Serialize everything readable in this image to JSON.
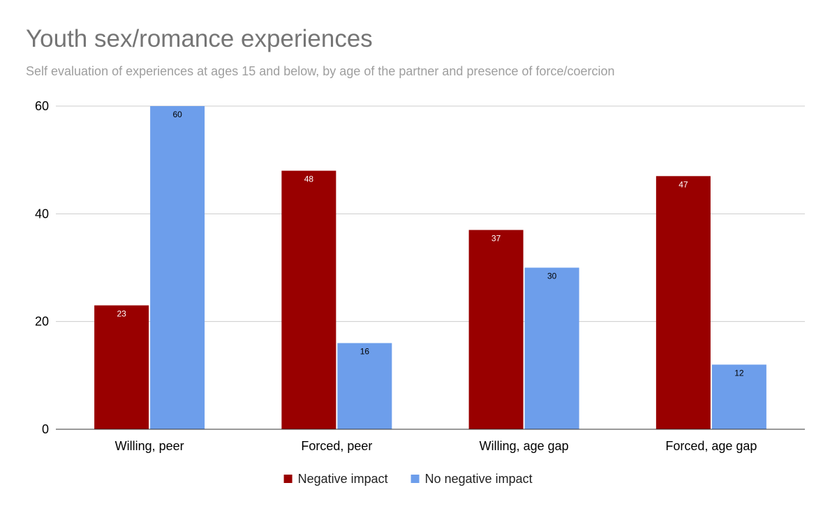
{
  "chart_data": {
    "type": "bar",
    "title": "Youth sex/romance experiences",
    "subtitle": "Self evaluation of experiences at ages 15 and below, by age of the partner and presence of force/coercion",
    "categories": [
      "Willing, peer",
      "Forced, peer",
      "Willing, age gap",
      "Forced, age gap"
    ],
    "series": [
      {
        "name": "Negative impact",
        "color": "#990000",
        "label_color": "#ffffff",
        "values": [
          23,
          48,
          37,
          47
        ]
      },
      {
        "name": "No negative impact",
        "color": "#6d9eeb",
        "label_color": "#000000",
        "values": [
          60,
          16,
          30,
          12
        ]
      }
    ],
    "ylim": [
      0,
      60
    ],
    "yticks": [
      0,
      20,
      40,
      60
    ],
    "grid": true,
    "legend_position": "bottom"
  }
}
